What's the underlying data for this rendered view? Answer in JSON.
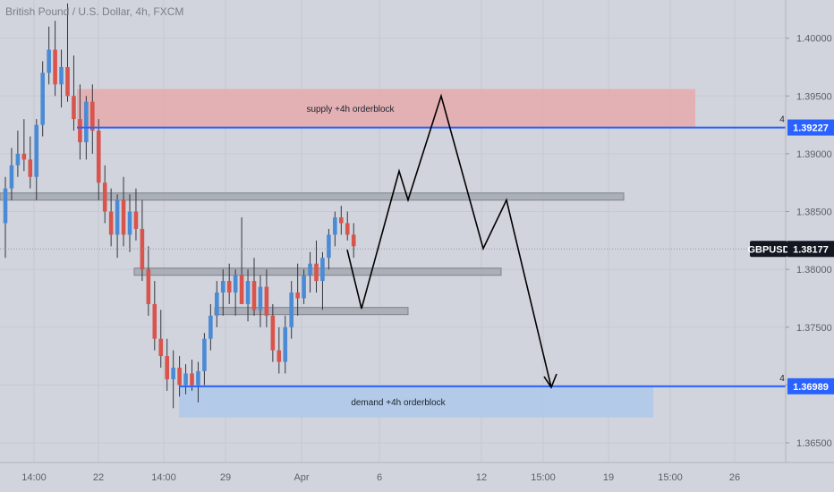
{
  "chart_data": {
    "type": "candlestick",
    "title": "British Pound / U.S. Dollar, 4h, FXCM",
    "y_range": [
      1.3633,
      1.4033
    ],
    "y_ticks": [
      "1.40000",
      "1.39500",
      "1.39000",
      "1.38500",
      "1.38000",
      "1.37500",
      "1.37000",
      "1.36500"
    ],
    "y_tick_values": [
      1.4,
      1.395,
      1.39,
      1.385,
      1.38,
      1.375,
      1.37,
      1.365
    ],
    "x_ticks": [
      "14:00",
      "22",
      "14:00",
      "29",
      "Apr",
      "6",
      "12",
      "15:00",
      "19",
      "15:00",
      "26"
    ],
    "candles": [
      [
        1.384,
        1.388,
        1.381,
        1.387
      ],
      [
        1.387,
        1.3905,
        1.386,
        1.389
      ],
      [
        1.389,
        1.392,
        1.388,
        1.39
      ],
      [
        1.39,
        1.393,
        1.3885,
        1.3895
      ],
      [
        1.3895,
        1.3915,
        1.387,
        1.388
      ],
      [
        1.388,
        1.393,
        1.386,
        1.3925
      ],
      [
        1.3925,
        1.398,
        1.3915,
        1.397
      ],
      [
        1.397,
        1.401,
        1.396,
        1.399
      ],
      [
        1.399,
        1.4015,
        1.395,
        1.396
      ],
      [
        1.396,
        1.399,
        1.394,
        1.3975
      ],
      [
        1.3975,
        1.403,
        1.3945,
        1.395
      ],
      [
        1.395,
        1.3985,
        1.392,
        1.393
      ],
      [
        1.393,
        1.396,
        1.3895,
        1.391
      ],
      [
        1.391,
        1.395,
        1.3895,
        1.3945
      ],
      [
        1.3945,
        1.396,
        1.39,
        1.392
      ],
      [
        1.392,
        1.393,
        1.386,
        1.3875
      ],
      [
        1.3875,
        1.389,
        1.384,
        1.385
      ],
      [
        1.385,
        1.387,
        1.382,
        1.383
      ],
      [
        1.383,
        1.3865,
        1.381,
        1.386
      ],
      [
        1.386,
        1.388,
        1.382,
        1.383
      ],
      [
        1.383,
        1.3865,
        1.3815,
        1.385
      ],
      [
        1.385,
        1.387,
        1.3825,
        1.3835
      ],
      [
        1.3835,
        1.386,
        1.379,
        1.38
      ],
      [
        1.38,
        1.382,
        1.376,
        1.377
      ],
      [
        1.377,
        1.379,
        1.373,
        1.374
      ],
      [
        1.374,
        1.3765,
        1.3715,
        1.3725
      ],
      [
        1.3725,
        1.374,
        1.3695,
        1.3705
      ],
      [
        1.3705,
        1.373,
        1.368,
        1.3715
      ],
      [
        1.3715,
        1.3725,
        1.369,
        1.37
      ],
      [
        1.37,
        1.3718,
        1.3692,
        1.371
      ],
      [
        1.371,
        1.3722,
        1.3695,
        1.37
      ],
      [
        1.37,
        1.372,
        1.3685,
        1.3712
      ],
      [
        1.3712,
        1.3745,
        1.37,
        1.374
      ],
      [
        1.374,
        1.377,
        1.373,
        1.376
      ],
      [
        1.376,
        1.379,
        1.375,
        1.378
      ],
      [
        1.378,
        1.38,
        1.376,
        1.379
      ],
      [
        1.379,
        1.3805,
        1.377,
        1.378
      ],
      [
        1.378,
        1.38,
        1.376,
        1.3795
      ],
      [
        1.3795,
        1.3845,
        1.377,
        1.377
      ],
      [
        1.377,
        1.38,
        1.3755,
        1.379
      ],
      [
        1.379,
        1.381,
        1.376,
        1.3765
      ],
      [
        1.3765,
        1.3795,
        1.375,
        1.3785
      ],
      [
        1.3785,
        1.38,
        1.375,
        1.376
      ],
      [
        1.376,
        1.377,
        1.372,
        1.373
      ],
      [
        1.373,
        1.375,
        1.371,
        1.372
      ],
      [
        1.372,
        1.376,
        1.371,
        1.375
      ],
      [
        1.375,
        1.379,
        1.374,
        1.378
      ],
      [
        1.378,
        1.3805,
        1.376,
        1.3775
      ],
      [
        1.3775,
        1.38,
        1.377,
        1.3795
      ],
      [
        1.3795,
        1.3815,
        1.378,
        1.3805
      ],
      [
        1.3805,
        1.3825,
        1.378,
        1.379
      ],
      [
        1.379,
        1.3815,
        1.3765,
        1.381
      ],
      [
        1.381,
        1.3835,
        1.38,
        1.383
      ],
      [
        1.383,
        1.385,
        1.382,
        1.3845
      ],
      [
        1.3845,
        1.3855,
        1.383,
        1.384
      ],
      [
        1.384,
        1.385,
        1.3825,
        1.383
      ],
      [
        1.383,
        1.384,
        1.381,
        1.382
      ]
    ],
    "horizontal_lines": [
      {
        "label": "1.39227",
        "value": 1.39227,
        "color": "#2962ff",
        "count_label": "4"
      },
      {
        "label": "1.36989",
        "value": 1.36989,
        "color": "#2962ff",
        "count_label": "4"
      },
      {
        "label": "1.38177",
        "value": 1.38177,
        "color": "#9598a1",
        "symbol": "GBPUSD"
      }
    ],
    "zones": [
      {
        "label": "supply +4h orderblock",
        "top": 1.3956,
        "bottom": 1.3923,
        "color": "#e8a6a6"
      },
      {
        "label": "demand +4h orderblock",
        "top": 1.3699,
        "bottom": 1.3672,
        "color": "#a8c8ec"
      }
    ],
    "levels_gray": [
      1.3863,
      1.3798,
      1.3764
    ],
    "projection_path": [
      [
        1.3817
      ],
      [
        1.3766
      ],
      [
        1.3885
      ],
      [
        1.386
      ],
      [
        1.395
      ],
      [
        1.3818
      ],
      [
        1.386
      ],
      [
        1.3698
      ]
    ],
    "colors": {
      "up": "#4b8bd6",
      "down": "#d9544d",
      "bg": "#d1d4dc"
    }
  }
}
